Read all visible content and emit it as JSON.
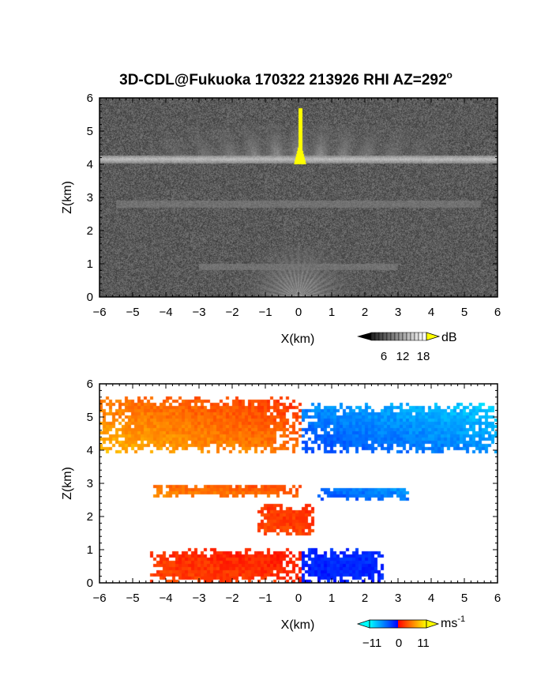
{
  "chart_data": [
    {
      "type": "heatmap",
      "title": "3D-CDL@Fukuoka 170322 213926 RHI AZ=292",
      "title_superscript": "o",
      "xlabel": "X(km)",
      "ylabel": "Z(km)",
      "xlim": [
        -6,
        6
      ],
      "ylim": [
        0,
        6
      ],
      "xticks": [
        "-6",
        "-5",
        "-4",
        "-3",
        "-2",
        "-1",
        "0",
        "1",
        "2",
        "3",
        "4",
        "5",
        "6"
      ],
      "yticks": [
        "0",
        "1",
        "2",
        "3",
        "4",
        "5",
        "6"
      ],
      "colorbar": {
        "label": "dB",
        "ticks": [
          "6",
          "12",
          "18"
        ],
        "range": [
          0,
          20
        ],
        "palette": "grayscale",
        "high_color": "#ffff00"
      },
      "features": [
        {
          "kind": "cloud_layer",
          "z": 4.15,
          "x_range": [
            -6,
            6
          ],
          "intensity_db": 14
        },
        {
          "kind": "fall_streaks",
          "z_range": [
            4.2,
            5.2
          ],
          "x_range": [
            -4.5,
            4.5
          ],
          "intensity_db": 9
        },
        {
          "kind": "strong_echo",
          "x": 0.05,
          "z_range": [
            4.0,
            5.7
          ],
          "intensity_db": 20
        },
        {
          "kind": "weak_layer",
          "z": 2.8,
          "x_range": [
            -5.5,
            5.5
          ],
          "intensity_db": 7
        },
        {
          "kind": "weak_layer",
          "z": 0.9,
          "x_range": [
            -3,
            3
          ],
          "intensity_db": 7
        },
        {
          "kind": "near_ground_echo",
          "z_range": [
            0,
            0.4
          ],
          "x_range": [
            -1.5,
            1.5
          ],
          "intensity_db": 11
        }
      ]
    },
    {
      "type": "heatmap",
      "xlabel": "X(km)",
      "ylabel": "Z(km)",
      "xlim": [
        -6,
        6
      ],
      "ylim": [
        0,
        6
      ],
      "xticks": [
        "-6",
        "-5",
        "-4",
        "-3",
        "-2",
        "-1",
        "0",
        "1",
        "2",
        "3",
        "4",
        "5",
        "6"
      ],
      "yticks": [
        "0",
        "1",
        "2",
        "3",
        "4",
        "5",
        "6"
      ],
      "colorbar": {
        "label": "ms",
        "label_superscript": "-1",
        "ticks": [
          "−11",
          "0",
          "11"
        ],
        "range": [
          -11,
          11
        ]
      },
      "regions": [
        {
          "x_range": [
            -6,
            0.1
          ],
          "z_range": [
            3.9,
            5.6
          ],
          "velocity_ms": [
            8,
            2
          ]
        },
        {
          "x_range": [
            0.1,
            6
          ],
          "z_range": [
            3.9,
            5.4
          ],
          "velocity_ms": [
            -3,
            -9
          ]
        },
        {
          "x_range": [
            -4.4,
            0.1
          ],
          "z_range": [
            2.6,
            2.95
          ],
          "velocity_ms": [
            6,
            3
          ]
        },
        {
          "x_range": [
            0.6,
            3.3
          ],
          "z_range": [
            2.5,
            2.9
          ],
          "velocity_ms": [
            -3,
            -7
          ]
        },
        {
          "x_range": [
            -1.2,
            0.5
          ],
          "z_range": [
            1.4,
            2.4
          ],
          "velocity_ms": [
            3,
            2
          ]
        },
        {
          "x_range": [
            -4.5,
            0.1
          ],
          "z_range": [
            0,
            1.0
          ],
          "velocity_ms": [
            3,
            1
          ]
        },
        {
          "x_range": [
            0.1,
            2.6
          ],
          "z_range": [
            0,
            1.0
          ],
          "velocity_ms": [
            -1,
            -2
          ]
        }
      ]
    }
  ]
}
